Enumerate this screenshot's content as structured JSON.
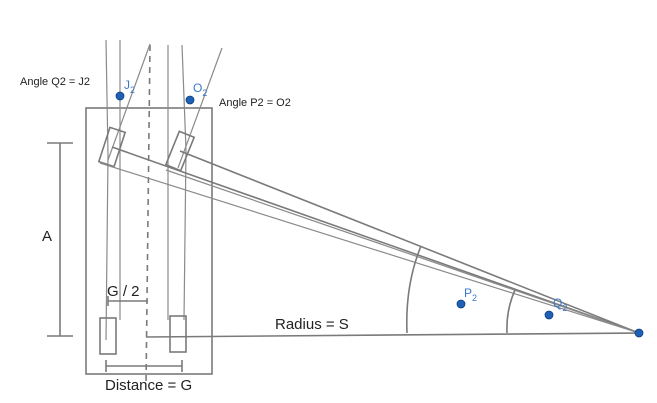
{
  "labels": {
    "angle_q2": "Angle Q2 = J2",
    "angle_p2": "Angle P2 = O2",
    "a": "A",
    "half_g": "G / 2",
    "radius": "Radius = S",
    "distance": "Distance = G"
  },
  "points": {
    "j": {
      "letter": "J",
      "sub": "2"
    },
    "o": {
      "letter": "O",
      "sub": "2"
    },
    "p": {
      "letter": "P",
      "sub": "2"
    },
    "q": {
      "letter": "Q",
      "sub": "2"
    }
  },
  "colors": {
    "line": "#7a7a7a",
    "point": "#1f5fb5",
    "point_label": "#3a78c9",
    "text": "#222222"
  }
}
